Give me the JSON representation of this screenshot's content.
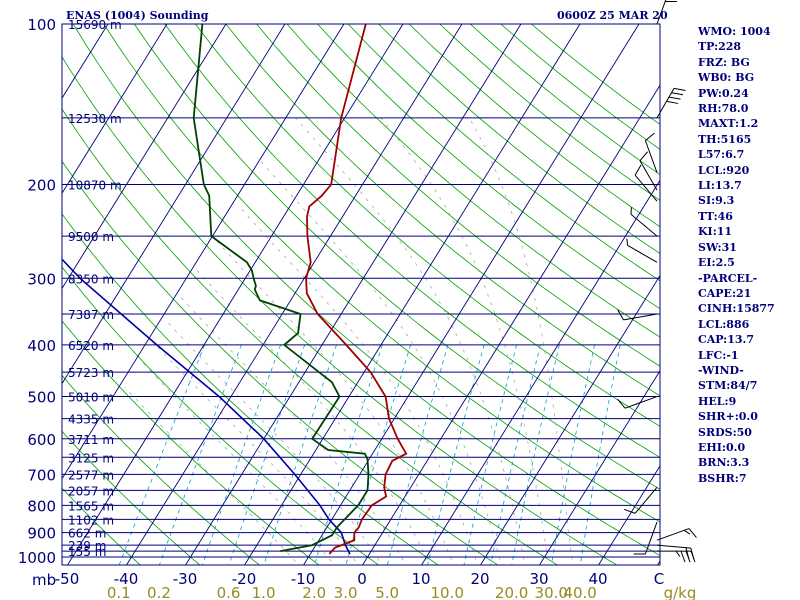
{
  "title_left": "ENAS (1004) Sounding",
  "title_right": "0600Z 25 MAR 20",
  "indices": [
    "WMO: 1004",
    "TP:228",
    "FRZ: BG",
    "WB0: BG",
    "PW:0.24",
    "RH:78.0",
    "MAXT:1.2",
    "TH:5165",
    "L57:6.7",
    "LCL:920",
    "LI:13.7",
    "SI:9.3",
    "TT:46",
    "KI:11",
    "SW:31",
    "EI:2.5",
    "-PARCEL-",
    "CAPE:21",
    "CINH:15877",
    "LCL:886",
    "CAP:13.7",
    "LFC:-1",
    "-WIND-",
    "STM:84/7",
    "HEL:9",
    "SHR+:0.0",
    "SRDS:50",
    "EHI:0.0",
    "BRN:3.3",
    "BSHR:7"
  ],
  "colors": {
    "frame": "#00007a",
    "isobar": "#00007a",
    "isotherm": "#00007a",
    "dry_adiabat": "#00a000",
    "moist_adiabat": "#a8a8a8",
    "mixing_ratio": "#00a0d0",
    "temperature": "#a00000",
    "dewpoint": "#004000",
    "parcel": "#0000a0",
    "height_label": "#00007a",
    "mixing_label": "#9a8a20",
    "wind_barb": "#000000"
  },
  "chart_data": {
    "type": "line",
    "diagram": "skew-T log-P",
    "y_axis_label": "mb",
    "x_axis_label": "C",
    "pressure_ticks": [
      100,
      200,
      300,
      400,
      500,
      600,
      700,
      800,
      900,
      1000
    ],
    "temperature_ticks": [
      -50,
      -40,
      -30,
      -20,
      -10,
      0,
      10,
      20,
      30,
      40
    ],
    "mixing_ratio_labels": [
      {
        "text": "0.1",
        "value": 0.1
      },
      {
        "text": "0.2",
        "value": 0.2
      },
      {
        "text": "0.6",
        "value": 0.6
      },
      {
        "text": "1.0",
        "value": 1.0
      },
      {
        "text": "2.0",
        "value": 2.0
      },
      {
        "text": "3.0",
        "value": 3.0
      },
      {
        "text": "5.0",
        "value": 5.0
      },
      {
        "text": "10.0",
        "value": 10.0
      },
      {
        "text": "20.0",
        "value": 20.0
      },
      {
        "text": "30.0",
        "value": 30.0
      },
      {
        "text": "40.0",
        "value": 40.0
      }
    ],
    "mixing_ratio_unit": "g/kg",
    "height_levels": [
      {
        "p": 100,
        "label": "15690 m"
      },
      {
        "p": 150,
        "label": "12530 m"
      },
      {
        "p": 200,
        "label": "10870 m"
      },
      {
        "p": 250,
        "label": "9500 m"
      },
      {
        "p": 300,
        "label": "8350 m"
      },
      {
        "p": 350,
        "label": "7387 m"
      },
      {
        "p": 400,
        "label": "6520 m"
      },
      {
        "p": 450,
        "label": "5723 m"
      },
      {
        "p": 500,
        "label": "5010 m"
      },
      {
        "p": 550,
        "label": "4335 m"
      },
      {
        "p": 600,
        "label": "3711 m"
      },
      {
        "p": 650,
        "label": "3125 m"
      },
      {
        "p": 700,
        "label": "2577 m"
      },
      {
        "p": 750,
        "label": "2057 m"
      },
      {
        "p": 800,
        "label": "1565 m"
      },
      {
        "p": 850,
        "label": "1102 m"
      },
      {
        "p": 900,
        "label": "662 m"
      },
      {
        "p": 950,
        "label": "239 m"
      },
      {
        "p": 975,
        "label": "155 m"
      }
    ],
    "temperature_profile": [
      [
        987,
        -6.8
      ],
      [
        960,
        -6.5
      ],
      [
        930,
        -4.0
      ],
      [
        900,
        -4.8
      ],
      [
        880,
        -4.6
      ],
      [
        850,
        -4.9
      ],
      [
        800,
        -4.7
      ],
      [
        770,
        -3.2
      ],
      [
        740,
        -4.5
      ],
      [
        700,
        -5.6
      ],
      [
        660,
        -5.9
      ],
      [
        640,
        -4.3
      ],
      [
        600,
        -7.3
      ],
      [
        550,
        -10.9
      ],
      [
        500,
        -13.8
      ],
      [
        450,
        -18.9
      ],
      [
        400,
        -25.9
      ],
      [
        350,
        -34.0
      ],
      [
        320,
        -38.0
      ],
      [
        300,
        -39.7
      ],
      [
        280,
        -40.6
      ],
      [
        250,
        -43.9
      ],
      [
        230,
        -46.0
      ],
      [
        220,
        -46.7
      ],
      [
        210,
        -45.7
      ],
      [
        200,
        -45.3
      ],
      [
        150,
        -50.6
      ],
      [
        100,
        -56.3
      ]
    ],
    "dewpoint_profile": [
      [
        975,
        -15.4
      ],
      [
        950,
        -10.6
      ],
      [
        910,
        -8.3
      ],
      [
        880,
        -8.3
      ],
      [
        800,
        -7.0
      ],
      [
        750,
        -7.0
      ],
      [
        700,
        -8.5
      ],
      [
        655,
        -10.3
      ],
      [
        640,
        -11.3
      ],
      [
        630,
        -17.9
      ],
      [
        600,
        -21.8
      ],
      [
        500,
        -21.6
      ],
      [
        470,
        -24.4
      ],
      [
        400,
        -36.4
      ],
      [
        380,
        -35.3
      ],
      [
        350,
        -36.9
      ],
      [
        330,
        -45.2
      ],
      [
        315,
        -47.2
      ],
      [
        310,
        -47.4
      ],
      [
        300,
        -48.6
      ],
      [
        290,
        -49.7
      ],
      [
        280,
        -51.4
      ],
      [
        250,
        -60.2
      ],
      [
        210,
        -64.8
      ],
      [
        200,
        -66.9
      ],
      [
        150,
        -75.6
      ],
      [
        100,
        -84.0
      ]
    ],
    "parcel_profile": [
      [
        987,
        -3.3
      ],
      [
        950,
        -5.0
      ],
      [
        900,
        -7.0
      ],
      [
        850,
        -10.5
      ],
      [
        800,
        -13.5
      ],
      [
        700,
        -21.0
      ],
      [
        600,
        -30.0
      ],
      [
        500,
        -42.0
      ],
      [
        400,
        -58.0
      ],
      [
        300,
        -78.0
      ],
      [
        200,
        -103.0
      ],
      [
        100,
        -148.0
      ]
    ],
    "wind_barbs": [
      {
        "p": 975,
        "dir": 90,
        "spd": 35
      },
      {
        "p": 950,
        "dir": 95,
        "spd": 20
      },
      {
        "p": 930,
        "dir": 70,
        "spd": 15
      },
      {
        "p": 860,
        "dir": 200,
        "spd": 10
      },
      {
        "p": 740,
        "dir": 220,
        "spd": 10
      },
      {
        "p": 500,
        "dir": 250,
        "spd": 10
      },
      {
        "p": 350,
        "dir": 260,
        "spd": 10
      },
      {
        "p": 280,
        "dir": 300,
        "spd": 5
      },
      {
        "p": 250,
        "dir": 310,
        "spd": 5
      },
      {
        "p": 215,
        "dir": 320,
        "spd": 10
      },
      {
        "p": 205,
        "dir": 330,
        "spd": 10
      },
      {
        "p": 190,
        "dir": 340,
        "spd": 10
      },
      {
        "p": 150,
        "dir": 30,
        "spd": 40
      },
      {
        "p": 100,
        "dir": 20,
        "spd": 30
      }
    ]
  }
}
